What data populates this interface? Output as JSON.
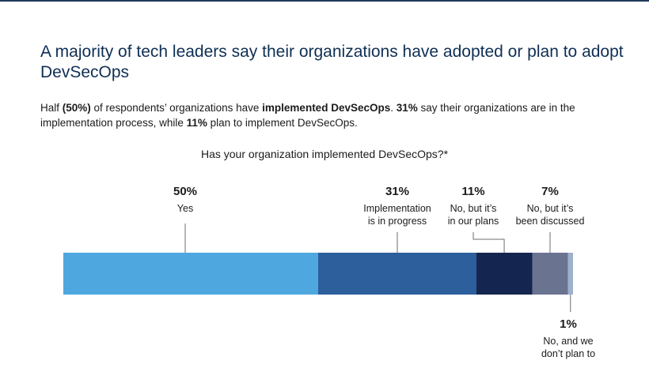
{
  "headline": "A majority of tech leaders say their organizations have adopted or plan to adopt DevSecOps",
  "subtext": {
    "p1": "Half ",
    "b1": "(50%)",
    "p2": " of respondents’ organizations have ",
    "b2": "implemented DevSecOps",
    "p3": ". ",
    "b3": "31%",
    "p4": " say their organizations are in the implementation process, while ",
    "b4": "11%",
    "p5": " plan to implement DevSecOps."
  },
  "question": "Has your organization implemented DevSecOps?*",
  "colors": {
    "topbar": "#1f3a5a",
    "headline": "#0f2f55"
  },
  "chart_data": {
    "type": "bar",
    "orientation": "horizontal-stacked",
    "categories": [
      "Yes",
      "Implementation is in progress",
      "No, but it’s in our plans",
      "No, but it’s been discussed",
      "No, and we don’t plan to"
    ],
    "values": [
      50,
      31,
      11,
      7,
      1
    ],
    "unit": "%",
    "value_labels": [
      "50%",
      "31%",
      "11%",
      "7%",
      "1%"
    ],
    "label_lines": [
      [
        "Yes"
      ],
      [
        "Implementation",
        "is in progress"
      ],
      [
        "No, but it’s",
        "in our plans"
      ],
      [
        "No, but it’s",
        "been discussed"
      ],
      [
        "No, and we",
        "don’t plan to"
      ]
    ],
    "colors": [
      "#4ea7df",
      "#2c5f9c",
      "#142650",
      "#6a7390",
      "#9fb0cc"
    ],
    "xlim": [
      0,
      100
    ]
  }
}
